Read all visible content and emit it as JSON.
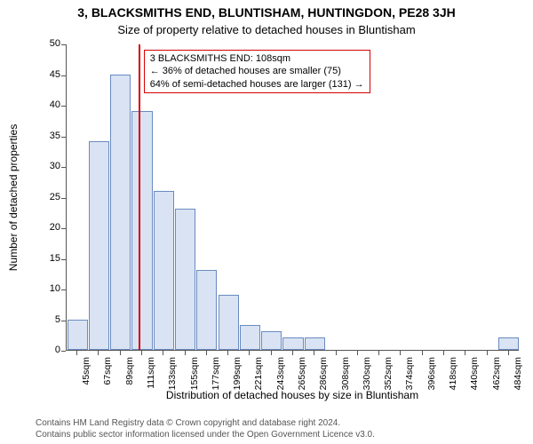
{
  "title_line1": "3, BLACKSMITHS END, BLUNTISHAM, HUNTINGDON, PE28 3JH",
  "title_line2": "Size of property relative to detached houses in Bluntisham",
  "yaxis": {
    "label": "Number of detached properties",
    "min": 0,
    "max": 50,
    "ticks": [
      0,
      5,
      10,
      15,
      20,
      25,
      30,
      35,
      40,
      45,
      50
    ]
  },
  "xaxis": {
    "label": "Distribution of detached houses by size in Bluntisham",
    "labels": [
      "45sqm",
      "67sqm",
      "89sqm",
      "111sqm",
      "133sqm",
      "155sqm",
      "177sqm",
      "199sqm",
      "221sqm",
      "243sqm",
      "265sqm",
      "286sqm",
      "308sqm",
      "330sqm",
      "352sqm",
      "374sqm",
      "396sqm",
      "418sqm",
      "440sqm",
      "462sqm",
      "484sqm"
    ],
    "values": [
      5,
      34,
      45,
      39,
      26,
      23,
      13,
      9,
      4,
      3,
      2,
      2,
      0,
      0,
      0,
      0,
      0,
      0,
      0,
      0,
      2
    ]
  },
  "marker": {
    "value_sqm": 108,
    "color": "#d40000"
  },
  "style": {
    "bar_fill": "#d9e3f3",
    "bar_border": "#6a8bc0",
    "axis_color": "#555555",
    "background": "#ffffff",
    "annotation_border": "#d40000",
    "annotation_bg": "#ffffff"
  },
  "annotation": {
    "line1": "3 BLACKSMITHS END: 108sqm",
    "line2": "← 36% of detached houses are smaller (75)",
    "line3": "64% of semi-detached houses are larger (131) →"
  },
  "footer": {
    "line1": "Contains HM Land Registry data © Crown copyright and database right 2024.",
    "line2": "Contains public sector information licensed under the Open Government Licence v3.0."
  }
}
